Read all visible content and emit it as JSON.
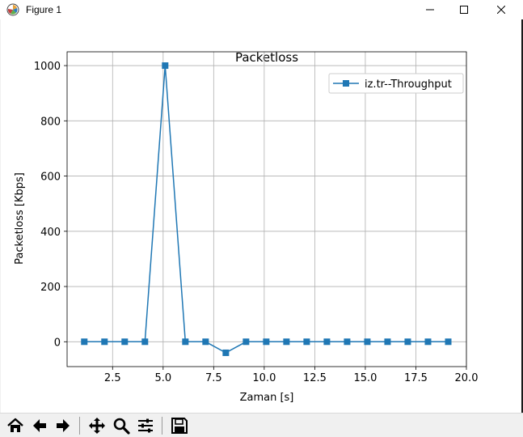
{
  "window": {
    "title": "Figure 1"
  },
  "toolbar": {
    "buttons": [
      "home-icon",
      "back-arrow-icon",
      "forward-arrow-icon",
      "pan-icon",
      "zoom-icon",
      "configure-subplots-icon",
      "save-icon"
    ]
  },
  "chart_data": {
    "type": "line",
    "title": "Packetloss",
    "xlabel": "Zaman [s]",
    "ylabel": "Packetloss [Kbps]",
    "xlim": [
      0.25,
      20.0
    ],
    "ylim": [
      -90,
      1050
    ],
    "xticks": [
      "2.5",
      "5.0",
      "7.5",
      "10.0",
      "12.5",
      "15.0",
      "17.5",
      "20.0"
    ],
    "yticks": [
      "0",
      "200",
      "400",
      "600",
      "800",
      "1000"
    ],
    "xtick_values": [
      2.5,
      5.0,
      7.5,
      10.0,
      12.5,
      15.0,
      17.5,
      20.0
    ],
    "ytick_values": [
      0,
      200,
      400,
      600,
      800,
      1000
    ],
    "grid": true,
    "legend_placement": "top-right",
    "marker": "square",
    "color": "#1f77b4",
    "series": [
      {
        "name": "iz.tr--Throughput",
        "x": [
          1.1,
          2.1,
          3.1,
          4.1,
          5.1,
          6.1,
          7.1,
          8.1,
          9.1,
          10.1,
          11.1,
          12.1,
          13.1,
          14.1,
          15.1,
          16.1,
          17.1,
          18.1,
          19.1
        ],
        "y": [
          0,
          0,
          0,
          0,
          1000,
          0,
          0,
          -40,
          0,
          0,
          0,
          0,
          0,
          0,
          0,
          0,
          0,
          0,
          0
        ]
      }
    ]
  }
}
